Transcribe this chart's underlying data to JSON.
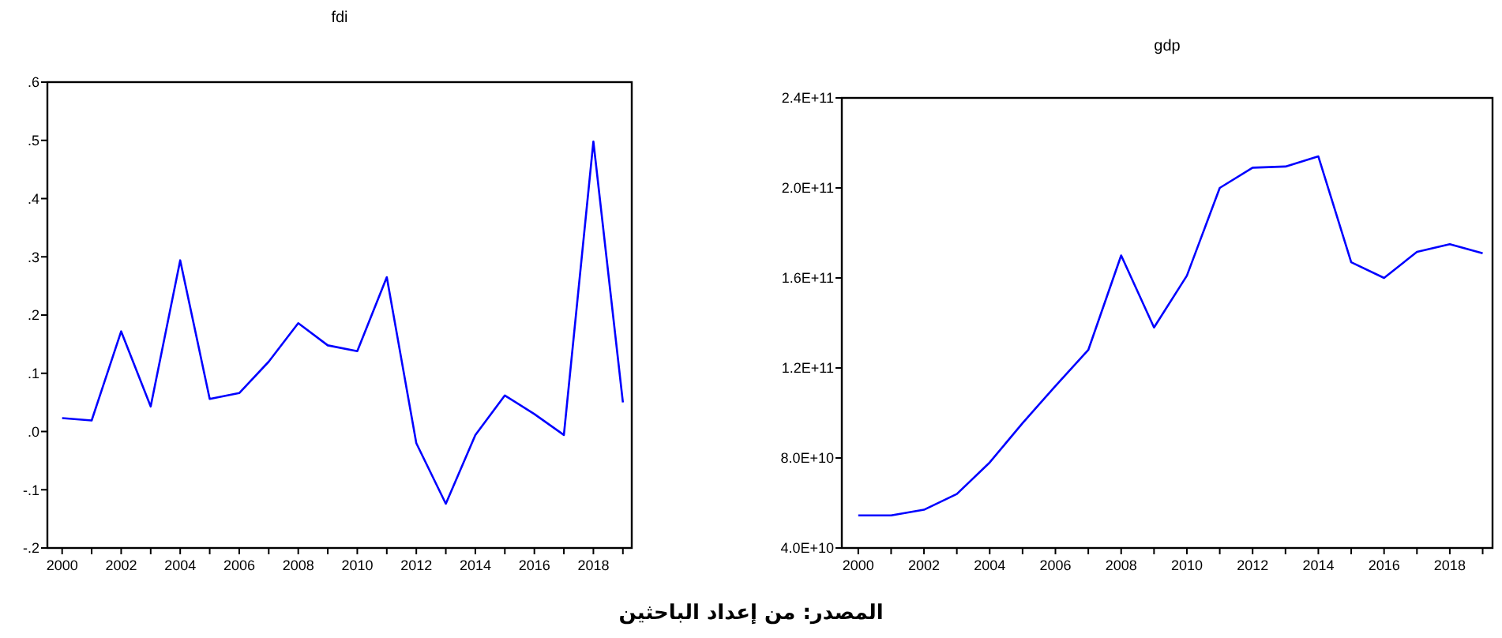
{
  "chart_data": [
    {
      "type": "line",
      "title": "fdi",
      "x": [
        2000,
        2001,
        2002,
        2003,
        2004,
        2005,
        2006,
        2007,
        2008,
        2009,
        2010,
        2011,
        2012,
        2013,
        2014,
        2015,
        2016,
        2017,
        2018,
        2019
      ],
      "series": [
        {
          "color": "#0000ff",
          "values": [
            0.023,
            0.019,
            0.172,
            0.043,
            0.294,
            0.056,
            0.066,
            0.12,
            0.186,
            0.148,
            0.138,
            0.265,
            -0.02,
            -0.124,
            -0.006,
            0.062,
            0.03,
            -0.006,
            0.498,
            0.05
          ]
        }
      ],
      "xlim": [
        1999.5,
        2019.3
      ],
      "xticks": [
        {
          "value": 2000,
          "label": "2000"
        },
        {
          "value": 2001,
          "label": null
        },
        {
          "value": 2002,
          "label": "2002"
        },
        {
          "value": 2003,
          "label": null
        },
        {
          "value": 2004,
          "label": "2004"
        },
        {
          "value": 2005,
          "label": null
        },
        {
          "value": 2006,
          "label": "2006"
        },
        {
          "value": 2007,
          "label": null
        },
        {
          "value": 2008,
          "label": "2008"
        },
        {
          "value": 2009,
          "label": null
        },
        {
          "value": 2010,
          "label": "2010"
        },
        {
          "value": 2011,
          "label": null
        },
        {
          "value": 2012,
          "label": "2012"
        },
        {
          "value": 2013,
          "label": null
        },
        {
          "value": 2014,
          "label": "2014"
        },
        {
          "value": 2015,
          "label": null
        },
        {
          "value": 2016,
          "label": "2016"
        },
        {
          "value": 2017,
          "label": null
        },
        {
          "value": 2018,
          "label": "2018"
        },
        {
          "value": 2019,
          "label": null
        }
      ],
      "ylim": [
        -0.2,
        0.6
      ],
      "yticks": [
        {
          "value": -0.2,
          "label": "-.2"
        },
        {
          "value": -0.1,
          "label": "-.1"
        },
        {
          "value": 0,
          "label": ".0"
        },
        {
          "value": 0.1,
          "label": ".1"
        },
        {
          "value": 0.2,
          "label": ".2"
        },
        {
          "value": 0.3,
          "label": ".3"
        },
        {
          "value": 0.4,
          "label": ".4"
        },
        {
          "value": 0.5,
          "label": ".5"
        },
        {
          "value": 0.6,
          "label": ".6"
        }
      ],
      "grid": false
    },
    {
      "type": "line",
      "title": "gdp",
      "x": [
        2000,
        2001,
        2002,
        2003,
        2004,
        2005,
        2006,
        2007,
        2008,
        2009,
        2010,
        2011,
        2012,
        2013,
        2014,
        2015,
        2016,
        2017,
        2018,
        2019
      ],
      "series": [
        {
          "color": "#0000ff",
          "values": [
            54500000000,
            54500000000,
            57000000000,
            64000000000,
            78000000000,
            95500000000,
            112000000000,
            128000000000,
            170000000000,
            138000000000,
            161000000000,
            200000000000,
            209000000000,
            209500000000,
            214000000000,
            167000000000,
            160000000000,
            171600000000,
            175000000000,
            171000000000
          ]
        }
      ],
      "xlim": [
        1999.5,
        2019.3
      ],
      "xticks": [
        {
          "value": 2000,
          "label": "2000"
        },
        {
          "value": 2001,
          "label": null
        },
        {
          "value": 2002,
          "label": "2002"
        },
        {
          "value": 2003,
          "label": null
        },
        {
          "value": 2004,
          "label": "2004"
        },
        {
          "value": 2005,
          "label": null
        },
        {
          "value": 2006,
          "label": "2006"
        },
        {
          "value": 2007,
          "label": null
        },
        {
          "value": 2008,
          "label": "2008"
        },
        {
          "value": 2009,
          "label": null
        },
        {
          "value": 2010,
          "label": "2010"
        },
        {
          "value": 2011,
          "label": null
        },
        {
          "value": 2012,
          "label": "2012"
        },
        {
          "value": 2013,
          "label": null
        },
        {
          "value": 2014,
          "label": "2014"
        },
        {
          "value": 2015,
          "label": null
        },
        {
          "value": 2016,
          "label": "2016"
        },
        {
          "value": 2017,
          "label": null
        },
        {
          "value": 2018,
          "label": "2018"
        },
        {
          "value": 2019,
          "label": null
        }
      ],
      "ylim": [
        40000000000,
        240000000000
      ],
      "yticks": [
        {
          "value": 40000000000,
          "label": "4.0E+10"
        },
        {
          "value": 80000000000,
          "label": "8.0E+10"
        },
        {
          "value": 120000000000,
          "label": "1.2E+11"
        },
        {
          "value": 160000000000,
          "label": "1.6E+11"
        },
        {
          "value": 200000000000,
          "label": "2.0E+11"
        },
        {
          "value": 240000000000,
          "label": "2.4E+11"
        }
      ],
      "grid": false,
      "annotations": [
        "المصدر: من إعداد الباحثين"
      ]
    }
  ]
}
